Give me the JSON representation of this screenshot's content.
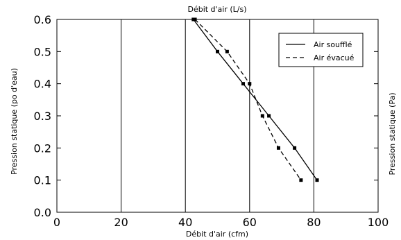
{
  "chart_data": {
    "type": "line",
    "title": "",
    "top_axis_label": "Débit d'air (L/s)",
    "xlabel": "Débit d'air (cfm)",
    "ylabel": "Pression statique (po d'eau)",
    "ylabel_right": "Pression statique (Pa)",
    "xlim": [
      0,
      100
    ],
    "ylim": [
      0.0,
      0.6
    ],
    "x_ticks": [
      "0",
      "20",
      "40",
      "60",
      "80",
      "100"
    ],
    "y_ticks": [
      "0.0",
      "0.1",
      "0.2",
      "0.3",
      "0.4",
      "0.5",
      "0.6"
    ],
    "grid": "vertical",
    "legend_position": "top-right",
    "series": [
      {
        "name": "Air soufflé",
        "style": "solid",
        "color": "#000000",
        "x": [
          42.5,
          50,
          58,
          66,
          74,
          81
        ],
        "y": [
          0.6,
          0.5,
          0.4,
          0.3,
          0.2,
          0.1
        ]
      },
      {
        "name": "Air évacué",
        "style": "dashed",
        "color": "#000000",
        "x": [
          43,
          53,
          60,
          64,
          69,
          76
        ],
        "y": [
          0.6,
          0.5,
          0.4,
          0.3,
          0.2,
          0.1
        ]
      }
    ]
  }
}
